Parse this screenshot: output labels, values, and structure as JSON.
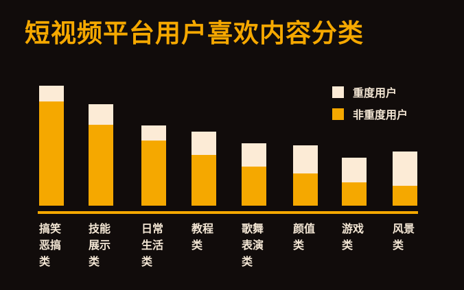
{
  "title": "短视频平台用户喜欢内容分类",
  "colors": {
    "background": "#110c0b",
    "heavy": "#fcebd6",
    "non_heavy": "#f5a800",
    "text": "#f3e6d4",
    "title": "#f5a800"
  },
  "legend": [
    {
      "label": "重度用户",
      "color": "#fcebd6"
    },
    {
      "label": "非重度用户",
      "color": "#f5a800"
    }
  ],
  "labels": [
    [
      "搞笑",
      "恶搞",
      "类"
    ],
    [
      "技能",
      "展示",
      "类"
    ],
    [
      "日常",
      "生活",
      "类"
    ],
    [
      "教程",
      "类"
    ],
    [
      "歌舞",
      "表演",
      "类"
    ],
    [
      "颜值",
      "类"
    ],
    [
      "游戏",
      "类"
    ],
    [
      "风景",
      "类"
    ]
  ],
  "chart_data": {
    "type": "bar",
    "stacked": true,
    "title": "短视频平台用户喜欢内容分类",
    "xlabel": "",
    "ylabel": "",
    "grid": false,
    "legend_position": "top-right",
    "categories": [
      "搞笑恶搞类",
      "技能展示类",
      "日常生活类",
      "教程类",
      "歌舞表演类",
      "颜值类",
      "游戏类",
      "风景类"
    ],
    "series": [
      {
        "name": "非重度用户",
        "values": [
          152,
          118,
          95,
          74,
          57,
          47,
          34,
          29
        ]
      },
      {
        "name": "重度用户",
        "values": [
          23,
          30,
          22,
          34,
          34,
          41,
          36,
          50
        ]
      }
    ],
    "note": "No axis values shown; values are relative bar heights in pixels"
  }
}
